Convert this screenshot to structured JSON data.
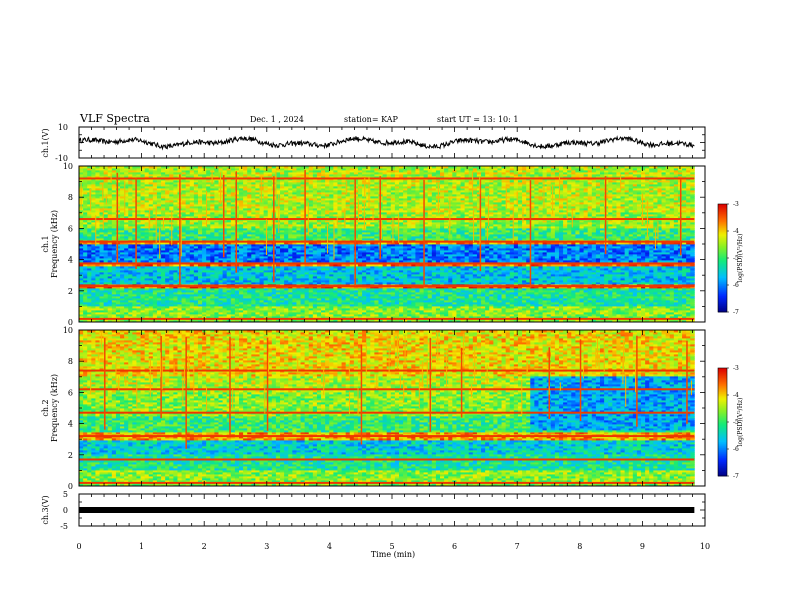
{
  "header": {
    "title": "VLF Spectra",
    "date": "Dec. 1 , 2024",
    "station": "station= KAP",
    "start": "start UT = 13: 10: 1"
  },
  "chart_data": [
    {
      "type": "line",
      "panel": "ch1-voltage",
      "ylabel": "ch.1(V)",
      "ylim": [
        -10,
        10
      ],
      "yticks": [
        "10",
        "-10"
      ],
      "xlim": [
        0,
        10
      ],
      "x_end": 9.83,
      "trace_range_approx": [
        -4,
        3.5
      ],
      "style": "noisy waveform"
    },
    {
      "type": "heatmap",
      "panel": "ch1-spectrogram",
      "ylabel": [
        "ch.1",
        "Frequency (kHz)"
      ],
      "ylim": [
        0,
        10
      ],
      "yticks": [
        "0",
        "2",
        "4",
        "6",
        "8",
        "10"
      ],
      "xlim": [
        0,
        10
      ],
      "x_end": 9.83,
      "colorbar": {
        "label": "log(PSD)(V²/Hz)",
        "range": [
          -7,
          -3
        ],
        "ticks": [
          "-3",
          "-4",
          "-5",
          "-6",
          "-7"
        ]
      },
      "bands_khz": [
        {
          "from": 0.0,
          "to": 1.0,
          "level": -4.6
        },
        {
          "from": 1.0,
          "to": 2.2,
          "level": -5.2
        },
        {
          "from": 2.2,
          "to": 2.4,
          "level": -3.5
        },
        {
          "from": 2.4,
          "to": 3.6,
          "level": -5.6
        },
        {
          "from": 3.6,
          "to": 3.9,
          "level": -3.6
        },
        {
          "from": 3.9,
          "to": 5.0,
          "level": -6.0
        },
        {
          "from": 5.0,
          "to": 5.3,
          "level": -3.7
        },
        {
          "from": 5.3,
          "to": 6.0,
          "level": -5.0
        },
        {
          "from": 6.0,
          "to": 7.0,
          "level": -4.5
        },
        {
          "from": 7.0,
          "to": 10.0,
          "level": -4.4
        }
      ],
      "lines_khz": [
        0.2,
        2.3,
        3.75,
        5.15,
        6.6,
        9.2
      ],
      "impulse_times_min": [
        0.6,
        0.9,
        1.6,
        2.3,
        2.5,
        3.1,
        3.6,
        4.4,
        4.8,
        5.5,
        6.4,
        7.2,
        8.4,
        9.6
      ]
    },
    {
      "type": "heatmap",
      "panel": "ch2-spectrogram",
      "ylabel": [
        "ch.2",
        "Frequency (kHz)"
      ],
      "ylim": [
        0,
        10
      ],
      "yticks": [
        "0",
        "2",
        "4",
        "6",
        "8",
        "10"
      ],
      "xlim": [
        0,
        10
      ],
      "x_end": 9.83,
      "colorbar": {
        "label": "log(PSD)(V²/Hz)",
        "range": [
          -7,
          -3
        ],
        "ticks": [
          "-3",
          "-4",
          "-5",
          "-6",
          "-7"
        ]
      },
      "bands_khz": [
        {
          "from": 0.0,
          "to": 1.0,
          "level": -4.6
        },
        {
          "from": 1.0,
          "to": 2.0,
          "level": -5.2
        },
        {
          "from": 2.0,
          "to": 3.0,
          "level": -5.5
        },
        {
          "from": 3.0,
          "to": 3.4,
          "level": -3.8
        },
        {
          "from": 3.4,
          "to": 4.5,
          "level": -5.0
        },
        {
          "from": 4.5,
          "to": 6.0,
          "level": -4.6
        },
        {
          "from": 6.0,
          "to": 7.0,
          "level": -4.4
        },
        {
          "from": 7.0,
          "to": 10.0,
          "level": -4.1
        }
      ],
      "lines_khz": [
        0.2,
        1.7,
        3.2,
        4.7,
        6.2,
        7.4
      ],
      "quiet_region": {
        "from_min": 7.2,
        "freq_khz": [
          3.6,
          7.0
        ],
        "level": -5.8
      },
      "impulse_times_min": [
        0.4,
        1.3,
        1.7,
        2.4,
        3.0,
        4.5,
        5.6,
        6.1,
        7.5,
        8.0,
        8.9,
        9.7
      ]
    },
    {
      "type": "line",
      "panel": "ch3-voltage",
      "ylabel": "ch.3(V)",
      "ylim": [
        -5,
        5
      ],
      "yticks": [
        "5",
        "0",
        "-5"
      ],
      "xlim": [
        0,
        10
      ],
      "x_end": 9.83,
      "value": 0,
      "style": "thick flat band"
    }
  ],
  "x_axis": {
    "label": "Time (min)",
    "ticks": [
      "0",
      "1",
      "2",
      "3",
      "4",
      "5",
      "6",
      "7",
      "8",
      "9",
      "10"
    ]
  }
}
